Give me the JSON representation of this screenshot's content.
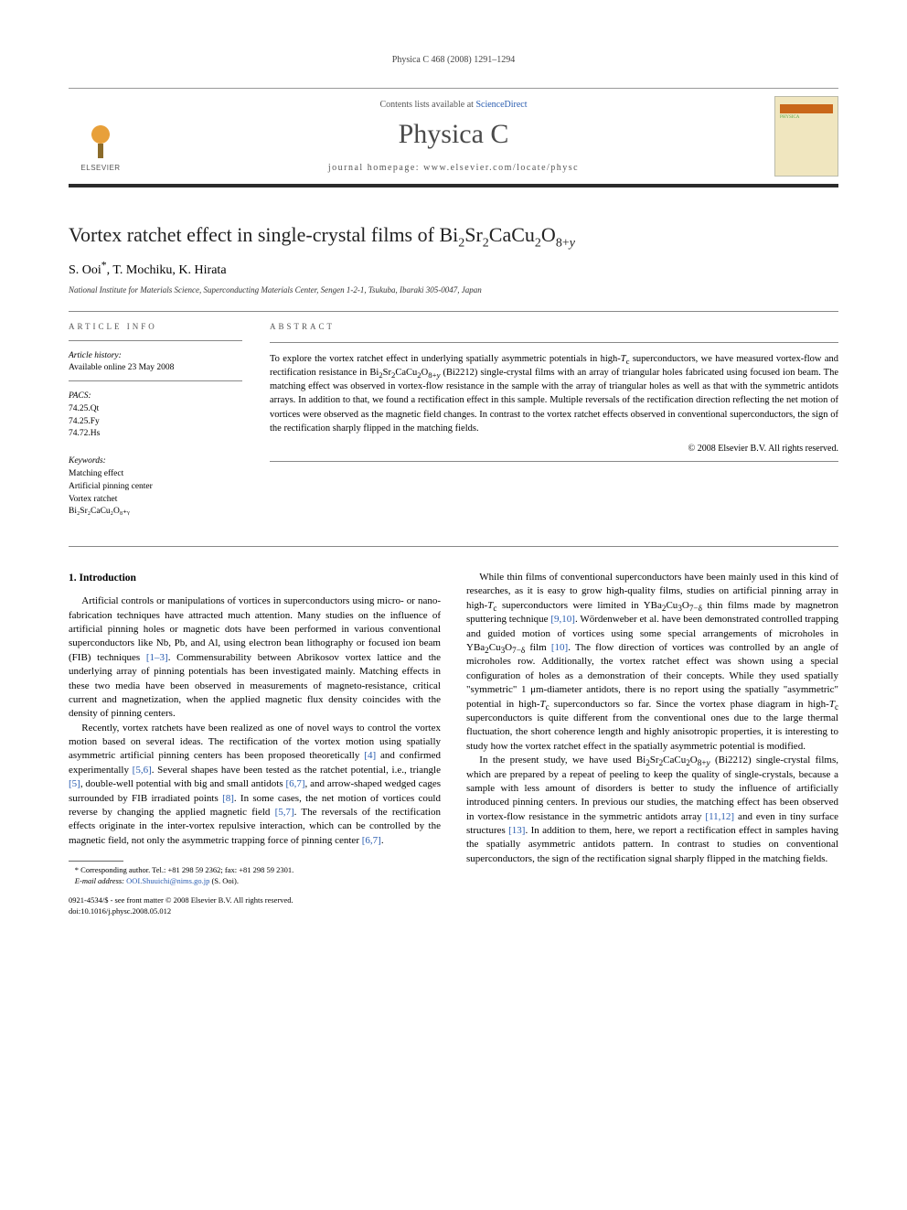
{
  "runningHeader": "Physica C 468 (2008) 1291–1294",
  "masthead": {
    "contentsPrefix": "Contents lists available at ",
    "contentsLink": "ScienceDirect",
    "journalName": "Physica C",
    "homepagePrefix": "journal homepage: ",
    "homepageUrl": "www.elsevier.com/locate/physc",
    "publisherLabel": "ELSEVIER",
    "coverLabel": "PHYSICA"
  },
  "article": {
    "titleHtml": "Vortex ratchet effect in single-crystal films of Bi<sub>2</sub>Sr<sub>2</sub>CaCu<sub>2</sub>O<sub>8+<i>y</i></sub>",
    "authorsHtml": "S. Ooi<sup>*</sup>, T. Mochiku, K. Hirata",
    "affiliation": "National Institute for Materials Science, Superconducting Materials Center, Sengen 1-2-1, Tsukuba, Ibaraki 305-0047, Japan"
  },
  "info": {
    "heading": "ARTICLE INFO",
    "historyLabel": "Article history:",
    "historyText": "Available online 23 May 2008",
    "pacsLabel": "PACS:",
    "pacs": [
      "74.25.Qt",
      "74.25.Fy",
      "74.72.Hs"
    ],
    "keywordsLabel": "Keywords:",
    "keywords": [
      "Matching effect",
      "Artificial pinning center",
      "Vortex ratchet",
      "Bi₂Sr₂CaCu₂O₈₊ᵧ"
    ]
  },
  "abstract": {
    "heading": "ABSTRACT",
    "textHtml": "To explore the vortex ratchet effect in underlying spatially asymmetric potentials in high-<i>T</i><sub>c</sub> superconductors, we have measured vortex-flow and rectification resistance in Bi<sub>2</sub>Sr<sub>2</sub>CaCu<sub>2</sub>O<sub>8+<i>y</i></sub> (Bi2212) single-crystal films with an array of triangular holes fabricated using focused ion beam. The matching effect was observed in vortex-flow resistance in the sample with the array of triangular holes as well as that with the symmetric antidots arrays. In addition to that, we found a rectification effect in this sample. Multiple reversals of the rectification direction reflecting the net motion of vortices were observed as the magnetic field changes. In contrast to the vortex ratchet effects observed in conventional superconductors, the sign of the rectification sharply flipped in the matching fields.",
    "copyright": "© 2008 Elsevier B.V. All rights reserved."
  },
  "section1": {
    "heading": "1. Introduction",
    "p1Html": "Artificial controls or manipulations of vortices in superconductors using micro- or nano-fabrication techniques have attracted much attention. Many studies on the influence of artificial pinning holes or magnetic dots have been performed in various conventional superconductors like Nb, Pb, and Al, using electron bean lithography or focused ion beam (FIB) techniques <span class=\"ref\">[1–3]</span>. Commensurability between Abrikosov vortex lattice and the underlying array of pinning potentials has been investigated mainly. Matching effects in these two media have been observed in measurements of magneto-resistance, critical current and magnetization, when the applied magnetic flux density coincides with the density of pinning centers.",
    "p2Html": "Recently, vortex ratchets have been realized as one of novel ways to control the vortex motion based on several ideas. The rectification of the vortex motion using spatially asymmetric artificial pinning centers has been proposed theoretically <span class=\"ref\">[4]</span> and confirmed experimentally <span class=\"ref\">[5,6]</span>. Several shapes have been tested as the ratchet potential, i.e., triangle <span class=\"ref\">[5]</span>, double-well potential with big and small antidots <span class=\"ref\">[6,7]</span>, and arrow-shaped wedged cages surrounded by FIB irradiated points <span class=\"ref\">[8]</span>. In some cases, the net motion of vortices could reverse by changing the applied magnetic field <span class=\"ref\">[5,7]</span>. The reversals of the rectification effects originate in the inter-vortex repulsive interaction, which can be controlled by the magnetic field, not only the asymmetric trapping force of pinning center <span class=\"ref\">[6,7]</span>.",
    "p3Html": "While thin films of conventional superconductors have been mainly used in this kind of researches, as it is easy to grow high-quality films, studies on artificial pinning array in high-<i>T</i><sub>c</sub> superconductors were limited in YBa<sub>2</sub>Cu<sub>3</sub>O<sub>7−δ</sub> thin films made by magnetron sputtering technique <span class=\"ref\">[9,10]</span>. Wördenweber et al. have been demonstrated controlled trapping and guided motion of vortices using some special arrangements of microholes in YBa<sub>2</sub>Cu<sub>3</sub>O<sub>7−δ</sub> film <span class=\"ref\">[10]</span>. The flow direction of vortices was controlled by an angle of microholes row. Additionally, the vortex ratchet effect was shown using a special configuration of holes as a demonstration of their concepts. While they used spatially \"symmetric\" 1 μm-diameter antidots, there is no report using the spatially \"asymmetric\" potential in high-<i>T</i><sub>c</sub> superconductors so far. Since the vortex phase diagram in high-<i>T</i><sub>c</sub> superconductors is quite different from the conventional ones due to the large thermal fluctuation, the short coherence length and highly anisotropic properties, it is interesting to study how the vortex ratchet effect in the spatially asymmetric potential is modified.",
    "p4Html": "In the present study, we have used Bi<sub>2</sub>Sr<sub>2</sub>CaCu<sub>2</sub>O<sub>8+<i>y</i></sub> (Bi2212) single-crystal films, which are prepared by a repeat of peeling to keep the quality of single-crystals, because a sample with less amount of disorders is better to study the influence of artificially introduced pinning centers. In previous our studies, the matching effect has been observed in vortex-flow resistance in the symmetric antidots array <span class=\"ref\">[11,12]</span> and even in tiny surface structures <span class=\"ref\">[13]</span>. In addition to them, here, we report a rectification effect in samples having the spatially asymmetric antidots pattern. In contrast to studies on conventional superconductors, the sign of the rectification signal sharply flipped in the matching fields."
  },
  "footnote": {
    "corrHtml": "* Corresponding author. Tel.: +81 298 59 2362; fax: +81 298 59 2301.",
    "emailLabel": "E-mail address:",
    "email": "OOI.Shuuichi@nims.go.jp",
    "emailSuffix": " (S. Ooi)."
  },
  "footerMeta": {
    "line1": "0921-4534/$ - see front matter © 2008 Elsevier B.V. All rights reserved.",
    "line2": "doi:10.1016/j.physc.2008.05.012"
  },
  "colors": {
    "link": "#2a5db0",
    "ruleDark": "#2b2b2b",
    "textMuted": "#555555"
  }
}
